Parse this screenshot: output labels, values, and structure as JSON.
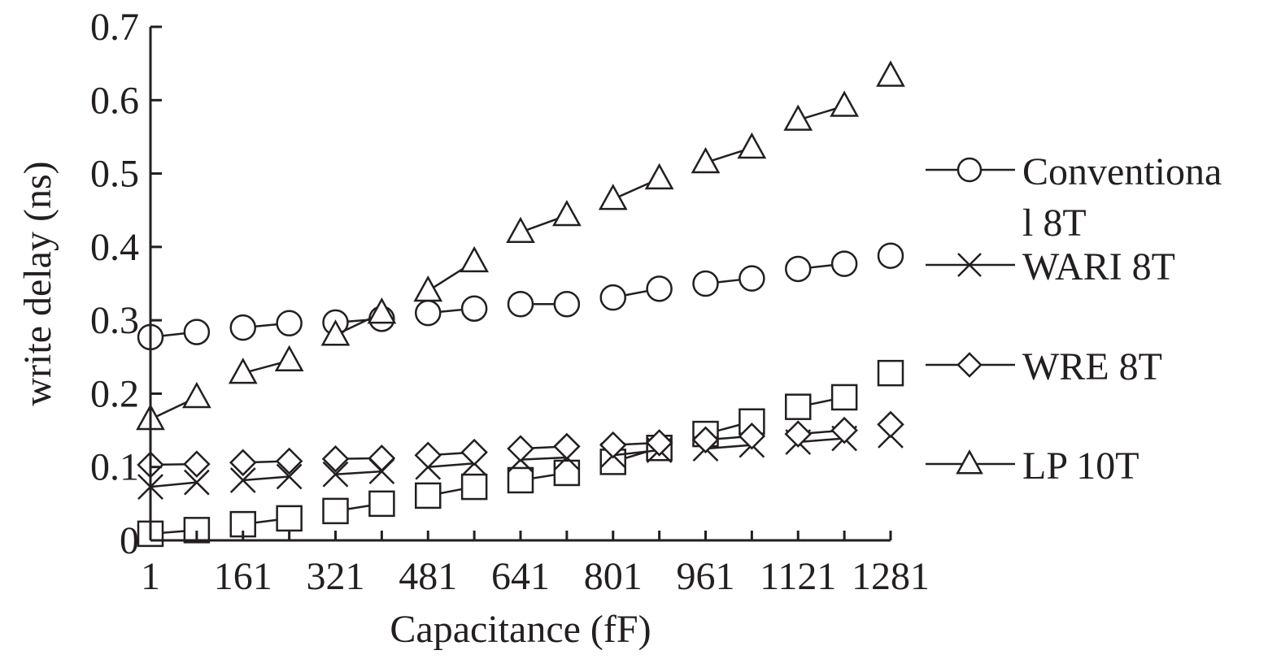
{
  "chart_data": {
    "type": "line",
    "title": "",
    "xlabel": "Capacitance (fF)",
    "ylabel": "write delay (ns)",
    "x": [
      1,
      81,
      161,
      241,
      321,
      401,
      481,
      561,
      641,
      721,
      801,
      881,
      961,
      1041,
      1121,
      1201,
      1281
    ],
    "x_tick_labels": [
      "1",
      "161",
      "321",
      "481",
      "641",
      "801",
      "961",
      "1121",
      "1281"
    ],
    "x_tick_values": [
      1,
      161,
      321,
      481,
      641,
      801,
      961,
      1121,
      1281
    ],
    "y_tick_labels": [
      "0",
      "0.1",
      "0.2",
      "0.3",
      "0.4",
      "0.5",
      "0.6",
      "0.7"
    ],
    "y_tick_values": [
      0,
      0.1,
      0.2,
      0.3,
      0.4,
      0.5,
      0.6,
      0.7
    ],
    "xlim": [
      1,
      1281
    ],
    "ylim": [
      0,
      0.7
    ],
    "grid": false,
    "legend_position": "right",
    "series": [
      {
        "name": "Conventiona l 8T",
        "legend_lines": [
          "Conventiona",
          "l 8T"
        ],
        "marker": "circle",
        "values": [
          0.277,
          0.284,
          0.29,
          0.296,
          0.297,
          0.302,
          0.31,
          0.316,
          0.322,
          0.322,
          0.331,
          0.343,
          0.35,
          0.357,
          0.37,
          0.377,
          0.388
        ]
      },
      {
        "name": "WARI 8T",
        "legend_lines": [
          "WARI 8T"
        ],
        "marker": "x",
        "values": [
          0.073,
          0.079,
          0.082,
          0.087,
          0.09,
          0.094,
          0.1,
          0.105,
          0.11,
          0.113,
          0.116,
          0.123,
          0.125,
          0.13,
          0.134,
          0.139,
          0.143
        ]
      },
      {
        "name": "WRE 8T",
        "legend_lines": [
          "WRE 8T"
        ],
        "marker": "diamond",
        "values": [
          0.103,
          0.104,
          0.106,
          0.108,
          0.111,
          0.112,
          0.116,
          0.12,
          0.125,
          0.128,
          0.13,
          0.133,
          0.137,
          0.142,
          0.145,
          0.15,
          0.158
        ]
      },
      {
        "name": "LP 10T",
        "legend_lines": [
          "LP 10T"
        ],
        "marker": "triangle",
        "values": [
          0.165,
          0.195,
          0.228,
          0.245,
          0.28,
          0.31,
          0.34,
          0.38,
          0.42,
          0.443,
          0.465,
          0.493,
          0.515,
          0.535,
          0.573,
          0.592,
          0.633
        ]
      },
      {
        "name": "",
        "legend_lines": [],
        "marker": "square",
        "values": [
          0.009,
          0.014,
          0.022,
          0.03,
          0.04,
          0.05,
          0.061,
          0.073,
          0.082,
          0.092,
          0.107,
          0.126,
          0.145,
          0.162,
          0.182,
          0.195,
          0.228
        ]
      }
    ]
  }
}
